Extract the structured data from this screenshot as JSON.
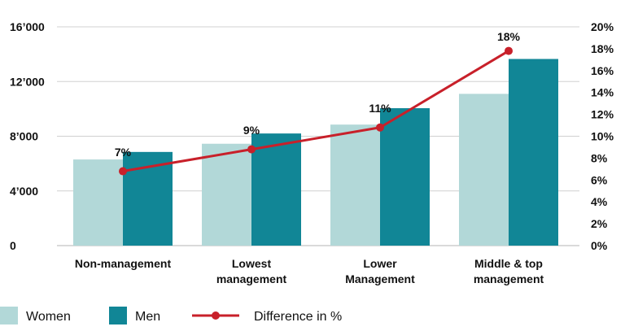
{
  "chart_data": {
    "type": "bar",
    "categories": [
      [
        "Non-management"
      ],
      [
        "Lowest",
        "management"
      ],
      [
        "Lower",
        "Management"
      ],
      [
        "Middle & top",
        "management"
      ]
    ],
    "series": [
      {
        "name": "Women",
        "values": [
          6300,
          7450,
          8850,
          11100
        ],
        "color": "#b2d8d8"
      },
      {
        "name": "Men",
        "values": [
          6850,
          8200,
          10050,
          13650
        ],
        "color": "#118696"
      }
    ],
    "line": {
      "name": "Difference in %",
      "values": [
        7,
        9,
        11,
        18
      ],
      "labels": [
        "7%",
        "9%",
        "11%",
        "18%"
      ],
      "plotted": [
        6.8,
        8.8,
        10.8,
        17.8
      ],
      "color": "#c8202a",
      "axis": "right"
    },
    "left_axis": {
      "ylim": [
        0,
        16000
      ],
      "ticks": [
        0,
        4000,
        8000,
        12000,
        16000
      ],
      "tick_labels": [
        "0",
        "4’000",
        "8’000",
        "12’000",
        "16’000"
      ]
    },
    "right_axis": {
      "ylim": [
        0,
        20
      ],
      "ticks": [
        0,
        2,
        4,
        6,
        8,
        10,
        12,
        14,
        16,
        18,
        20
      ],
      "tick_labels": [
        "0%",
        "2%",
        "4%",
        "6%",
        "8%",
        "10%",
        "12%",
        "14%",
        "16%",
        "18%",
        "20%"
      ]
    },
    "grid": true,
    "legend_position": "bottom-left",
    "title": "",
    "xlabel": "",
    "ylabel": ""
  }
}
